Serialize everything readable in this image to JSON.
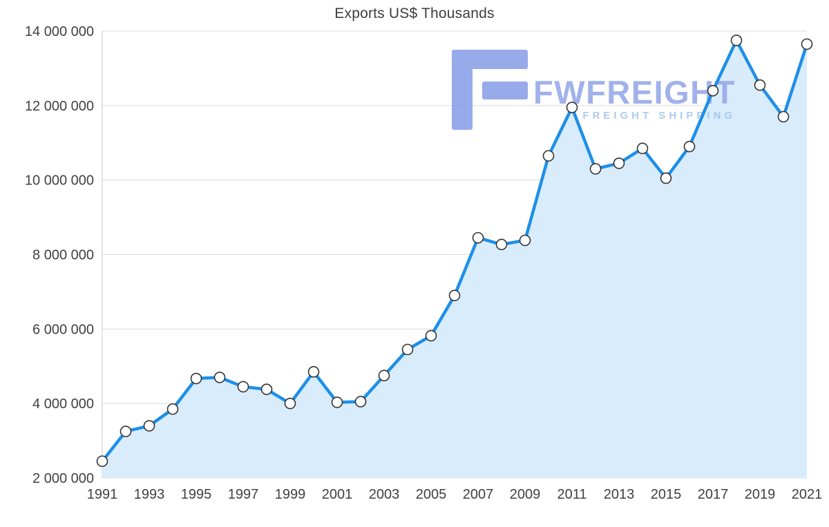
{
  "chart_data": {
    "type": "line",
    "title": "Exports US$ Thousands",
    "x": [
      1991,
      1992,
      1993,
      1994,
      1995,
      1996,
      1997,
      1998,
      1999,
      2000,
      2001,
      2002,
      2003,
      2004,
      2005,
      2006,
      2007,
      2008,
      2009,
      2010,
      2011,
      2012,
      2013,
      2014,
      2015,
      2016,
      2017,
      2018,
      2019,
      2020,
      2021
    ],
    "values": [
      2450000,
      3250000,
      3400000,
      3850000,
      4670000,
      4700000,
      4450000,
      4380000,
      4000000,
      4850000,
      4030000,
      4050000,
      4750000,
      5450000,
      5820000,
      6900000,
      8450000,
      8270000,
      8380000,
      10650000,
      11950000,
      10300000,
      10450000,
      10850000,
      10050000,
      10900000,
      12400000,
      13750000,
      12550000,
      11700000,
      13650000
    ],
    "x_ticks": [
      1991,
      1993,
      1995,
      1997,
      1999,
      2001,
      2003,
      2005,
      2007,
      2009,
      2011,
      2013,
      2015,
      2017,
      2019,
      2021
    ],
    "y_ticks": [
      2000000,
      4000000,
      6000000,
      8000000,
      10000000,
      12000000,
      14000000
    ],
    "xlim": [
      1991,
      2021
    ],
    "ylim": [
      2000000,
      14000000
    ],
    "grid": true,
    "legend": false,
    "area_filled": true,
    "marker": "circle",
    "styles": {
      "line_color": "#1d8fe8",
      "area_color": "#d9ecfb",
      "marker_fill": "#ffffff",
      "marker_stroke": "#333333",
      "grid_color": "#dadada",
      "axis_color": "#c9c9c9",
      "tick_label_color": "#404040",
      "title_color": "#3d3d3d"
    }
  },
  "watermark": {
    "brand": "FWFREIGHT",
    "tagline": "FREIGHT SHIPPING",
    "logo_color": "#8ca1e8",
    "brand_color": "#97a9e9",
    "tagline_color": "#a5c6ef"
  }
}
